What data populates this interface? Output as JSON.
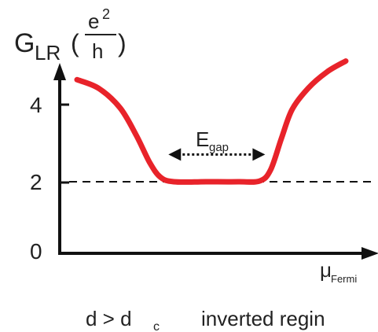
{
  "chart_data": {
    "type": "line",
    "ylabel": {
      "main": "G",
      "subscript": "LR",
      "unit_numerator": "e",
      "unit_numerator_sup": "2",
      "unit_denominator": "h",
      "open_paren": "(",
      "close_paren": ")"
    },
    "xlabel": {
      "main": "μ",
      "subscript": "Fermi"
    },
    "yticks": [
      "0",
      "2",
      "4"
    ],
    "ylim": [
      0,
      6
    ],
    "reference_line": {
      "y": 2,
      "style": "dashed"
    },
    "gap_annotation": {
      "label_main": "E",
      "label_sub": "gap",
      "from_x": 0.34,
      "to_x": 0.7,
      "y": 2.7
    },
    "series": [
      {
        "color": "#e8232a",
        "points": [
          [
            0.0,
            4.62
          ],
          [
            0.08,
            4.4
          ],
          [
            0.16,
            3.9
          ],
          [
            0.22,
            3.2
          ],
          [
            0.27,
            2.5
          ],
          [
            0.31,
            2.12
          ],
          [
            0.36,
            2.0
          ],
          [
            0.48,
            2.0
          ],
          [
            0.6,
            2.0
          ],
          [
            0.68,
            2.02
          ],
          [
            0.72,
            2.3
          ],
          [
            0.76,
            3.1
          ],
          [
            0.8,
            3.85
          ],
          [
            0.86,
            4.4
          ],
          [
            0.93,
            4.82
          ],
          [
            1.0,
            5.1
          ]
        ]
      }
    ],
    "caption": {
      "condition_left": "d > d",
      "condition_sub": "c",
      "condition_right": "inverted regin"
    }
  }
}
